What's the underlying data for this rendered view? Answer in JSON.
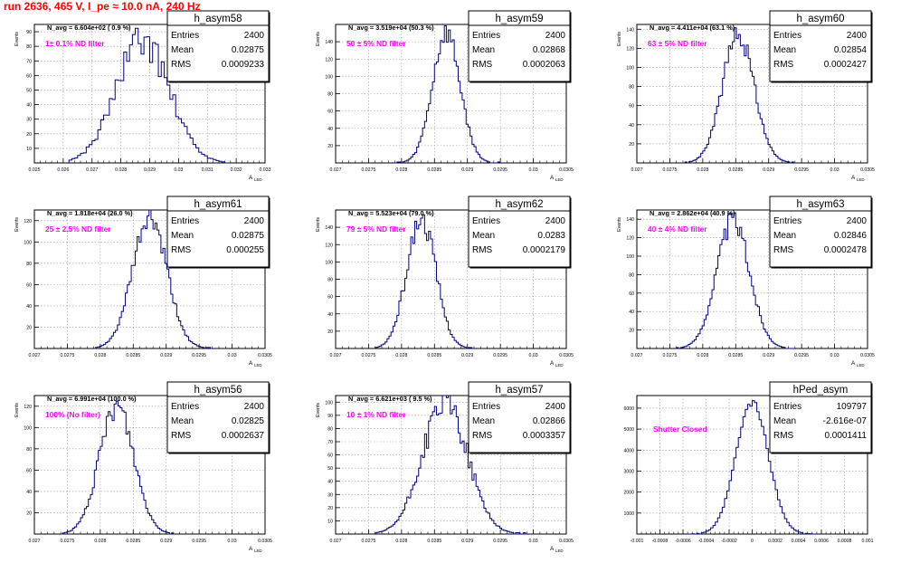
{
  "run_title": "run 2636,   465 V, I_pe ≈ 10.0 nA, 240 Hz",
  "colors": {
    "title": "#ff0000",
    "annotation": "#ff00ff",
    "histogram": "#000080",
    "grid": "#999999",
    "frame": "#000000",
    "background": "#ffffff"
  },
  "chart_data": [
    {
      "type": "histogram",
      "name": "h_asym58",
      "stats": {
        "entries_label": "Entries",
        "entries": "2400",
        "mean_label": "Mean",
        "mean": "0.02875",
        "rms_label": "RMS",
        "rms": "0.0009233"
      },
      "header": "N_avg = 6.604e+02 ( 0.9 %)",
      "annotation": "1± 0.1% ND filter",
      "xlabel": "A",
      "xlabel_sub": "LED",
      "ylabel": "Events",
      "xlim": [
        0.025,
        0.033
      ],
      "ylim": [
        0,
        95
      ],
      "xticks": [
        0.025,
        0.026,
        0.027,
        0.028,
        0.029,
        0.03,
        0.031,
        0.032,
        0.033
      ],
      "xtick_labels": [
        "0.025",
        "0.026",
        "0.027",
        "0.028",
        "0.029",
        "0.03",
        "0.031",
        "0.032",
        "0.033"
      ],
      "yticks": [
        10,
        20,
        30,
        40,
        50,
        60,
        70,
        80,
        90
      ],
      "grid": true,
      "profile": {
        "mean": 0.02875,
        "sigma": 0.00092,
        "peak": 84,
        "bin_width": 0.0001,
        "xmin": 0.0262,
        "xmax": 0.0318,
        "jitter": 0.14,
        "seed": 58
      }
    },
    {
      "type": "histogram",
      "name": "h_asym59",
      "stats": {
        "entries_label": "Entries",
        "entries": "2400",
        "mean_label": "Mean",
        "mean": "0.02868",
        "rms_label": "RMS",
        "rms": "0.0002063"
      },
      "header": "N_avg = 3.519e+04 (50.3 %)",
      "annotation": "50 ± 5% ND filter",
      "xlabel": "A",
      "xlabel_sub": "LED",
      "ylabel": "Events",
      "xlim": [
        0.027,
        0.0305
      ],
      "ylim": [
        0,
        160
      ],
      "xticks": [
        0.027,
        0.0275,
        0.028,
        0.0285,
        0.029,
        0.0295,
        0.03,
        0.0305
      ],
      "xtick_labels": [
        "0.027",
        "0.0275",
        "0.028",
        "0.0285",
        "0.029",
        "0.0295",
        "0.03",
        "0.0305"
      ],
      "yticks": [
        20,
        40,
        60,
        80,
        100,
        120,
        140
      ],
      "grid": true,
      "profile": {
        "mean": 0.02868,
        "sigma": 0.00021,
        "peak": 150,
        "bin_width": 3e-05,
        "xmin": 0.0279,
        "xmax": 0.0295,
        "jitter": 0.09,
        "seed": 59
      }
    },
    {
      "type": "histogram",
      "name": "h_asym60",
      "stats": {
        "entries_label": "Entries",
        "entries": "2400",
        "mean_label": "Mean",
        "mean": "0.02854",
        "rms_label": "RMS",
        "rms": "0.0002427"
      },
      "header": "N_avg = 4.411e+04 (63.1 %)",
      "annotation": "63 ± 5% ND filter",
      "xlabel": "A",
      "xlabel_sub": "LED",
      "ylabel": "Events",
      "xlim": [
        0.027,
        0.0305
      ],
      "ylim": [
        0,
        145
      ],
      "xticks": [
        0.027,
        0.0275,
        0.028,
        0.0285,
        0.029,
        0.0295,
        0.03,
        0.0305
      ],
      "xtick_labels": [
        "0.027",
        "0.0275",
        "0.028",
        "0.0285",
        "0.029",
        "0.0295",
        "0.03",
        "0.0305"
      ],
      "yticks": [
        20,
        40,
        60,
        80,
        100,
        120,
        140
      ],
      "grid": true,
      "profile": {
        "mean": 0.02854,
        "sigma": 0.00024,
        "peak": 135,
        "bin_width": 3e-05,
        "xmin": 0.0277,
        "xmax": 0.0294,
        "jitter": 0.09,
        "seed": 60
      }
    },
    {
      "type": "histogram",
      "name": "h_asym61",
      "stats": {
        "entries_label": "Entries",
        "entries": "2400",
        "mean_label": "Mean",
        "mean": "0.02875",
        "rms_label": "RMS",
        "rms": "0.000255"
      },
      "header": "N_avg = 1.818e+04 (26.0 %)",
      "annotation": "25 ± 2.5% ND filter",
      "xlabel": "A",
      "xlabel_sub": "LED",
      "ylabel": "Events",
      "xlim": [
        0.027,
        0.0305
      ],
      "ylim": [
        0,
        130
      ],
      "xticks": [
        0.027,
        0.0275,
        0.028,
        0.0285,
        0.029,
        0.0295,
        0.03,
        0.0305
      ],
      "xtick_labels": [
        "0.027",
        "0.0275",
        "0.028",
        "0.0285",
        "0.029",
        "0.0295",
        "0.03",
        "0.0305"
      ],
      "yticks": [
        20,
        40,
        60,
        80,
        100,
        120
      ],
      "grid": true,
      "profile": {
        "mean": 0.02875,
        "sigma": 0.00026,
        "peak": 122,
        "bin_width": 3e-05,
        "xmin": 0.0279,
        "xmax": 0.0297,
        "jitter": 0.09,
        "seed": 61
      }
    },
    {
      "type": "histogram",
      "name": "h_asym62",
      "stats": {
        "entries_label": "Entries",
        "entries": "2400",
        "mean_label": "Mean",
        "mean": "0.0283",
        "rms_label": "RMS",
        "rms": "0.0002179"
      },
      "header": "N_avg = 5.523e+04 (79.0 %)",
      "annotation": "79 ± 5% ND filter",
      "xlabel": "A",
      "xlabel_sub": "LED",
      "ylabel": "Events",
      "xlim": [
        0.027,
        0.0305
      ],
      "ylim": [
        0,
        160
      ],
      "xticks": [
        0.027,
        0.0275,
        0.028,
        0.0285,
        0.029,
        0.0295,
        0.03,
        0.0305
      ],
      "xtick_labels": [
        "0.027",
        "0.0275",
        "0.028",
        "0.0285",
        "0.029",
        "0.0295",
        "0.03",
        "0.0305"
      ],
      "yticks": [
        20,
        40,
        60,
        80,
        100,
        120,
        140
      ],
      "grid": true,
      "profile": {
        "mean": 0.0283,
        "sigma": 0.00022,
        "peak": 150,
        "bin_width": 3e-05,
        "xmin": 0.0276,
        "xmax": 0.0291,
        "jitter": 0.09,
        "seed": 62
      }
    },
    {
      "type": "histogram",
      "name": "h_asym63",
      "stats": {
        "entries_label": "Entries",
        "entries": "2400",
        "mean_label": "Mean",
        "mean": "0.02846",
        "rms_label": "RMS",
        "rms": "0.0002478"
      },
      "header": "N_avg = 2.862e+04 (40.9 %)",
      "annotation": "40 ± 4% ND filter",
      "xlabel": "A",
      "xlabel_sub": "LED",
      "ylabel": "Events",
      "xlim": [
        0.027,
        0.0305
      ],
      "ylim": [
        0,
        150
      ],
      "xticks": [
        0.027,
        0.0275,
        0.028,
        0.0285,
        0.029,
        0.0295,
        0.03,
        0.0305
      ],
      "xtick_labels": [
        "0.027",
        "0.0275",
        "0.028",
        "0.0285",
        "0.029",
        "0.0295",
        "0.03",
        "0.0305"
      ],
      "yticks": [
        20,
        40,
        60,
        80,
        100,
        120,
        140
      ],
      "grid": true,
      "profile": {
        "mean": 0.02846,
        "sigma": 0.00025,
        "peak": 138,
        "bin_width": 3e-05,
        "xmin": 0.0276,
        "xmax": 0.0294,
        "jitter": 0.09,
        "seed": 63
      }
    },
    {
      "type": "histogram",
      "name": "h_asym56",
      "stats": {
        "entries_label": "Entries",
        "entries": "2400",
        "mean_label": "Mean",
        "mean": "0.02825",
        "rms_label": "RMS",
        "rms": "0.0002637"
      },
      "header": "N_avg = 6.991e+04 (100.0 %)",
      "annotation": "100% (No filter)",
      "xlabel": "A",
      "xlabel_sub": "LED",
      "ylabel": "Events",
      "xlim": [
        0.027,
        0.0305
      ],
      "ylim": [
        0,
        130
      ],
      "xticks": [
        0.027,
        0.0275,
        0.028,
        0.0285,
        0.029,
        0.0295,
        0.03,
        0.0305
      ],
      "xtick_labels": [
        "0.027",
        "0.0275",
        "0.028",
        "0.0285",
        "0.029",
        "0.0295",
        "0.03",
        "0.0305"
      ],
      "yticks": [
        20,
        40,
        60,
        80,
        100,
        120
      ],
      "grid": true,
      "profile": {
        "mean": 0.02825,
        "sigma": 0.00026,
        "peak": 120,
        "bin_width": 3e-05,
        "xmin": 0.0274,
        "xmax": 0.0291,
        "jitter": 0.1,
        "seed": 56
      }
    },
    {
      "type": "histogram",
      "name": "h_asym57",
      "stats": {
        "entries_label": "Entries",
        "entries": "2400",
        "mean_label": "Mean",
        "mean": "0.02866",
        "rms_label": "RMS",
        "rms": "0.0003357"
      },
      "header": "N_avg = 6.621e+03 ( 9.5 %)",
      "annotation": "10 ± 1% ND filter",
      "xlabel": "A",
      "xlabel_sub": "LED",
      "ylabel": "Events",
      "xlim": [
        0.027,
        0.0305
      ],
      "ylim": [
        0,
        105
      ],
      "xticks": [
        0.027,
        0.0275,
        0.028,
        0.0285,
        0.029,
        0.0295,
        0.03,
        0.0305
      ],
      "xtick_labels": [
        "0.027",
        "0.0275",
        "0.028",
        "0.0285",
        "0.029",
        "0.0295",
        "0.03",
        "0.0305"
      ],
      "yticks": [
        10,
        20,
        30,
        40,
        50,
        60,
        70,
        80,
        90,
        100
      ],
      "grid": true,
      "profile": {
        "mean": 0.02866,
        "sigma": 0.00034,
        "peak": 100,
        "bin_width": 3e-05,
        "xmin": 0.0276,
        "xmax": 0.0299,
        "jitter": 0.12,
        "seed": 57
      }
    },
    {
      "type": "histogram",
      "name": "hPed_asym",
      "stats": {
        "entries_label": "Entries",
        "entries": "109797",
        "mean_label": "Mean",
        "mean": "-2.616e-07",
        "rms_label": "RMS",
        "rms": "0.0001411"
      },
      "header": "",
      "annotation": "Shutter Closed",
      "xlabel": "",
      "xlabel_sub": "",
      "ylabel": "",
      "xlim": [
        -0.001,
        0.001
      ],
      "ylim": [
        0,
        6600
      ],
      "xticks": [
        -0.001,
        -0.0008,
        -0.0006,
        -0.0004,
        -0.0002,
        0,
        0.0002,
        0.0004,
        0.0006,
        0.0008,
        0.001
      ],
      "xtick_labels": [
        "-0.001",
        "-0.0008",
        "-0.0006",
        "-0.0004",
        "-0.0002",
        "0",
        "0.0002",
        "0.0004",
        "0.0006",
        "0.0008",
        "0.001"
      ],
      "yticks": [
        1000,
        2000,
        3000,
        4000,
        5000,
        6000
      ],
      "grid": true,
      "profile": {
        "mean": 0.0,
        "sigma": 0.000141,
        "peak": 6250,
        "bin_width": 2e-05,
        "xmin": -0.00056,
        "xmax": 0.00056,
        "jitter": 0.03,
        "seed": 99
      }
    }
  ]
}
